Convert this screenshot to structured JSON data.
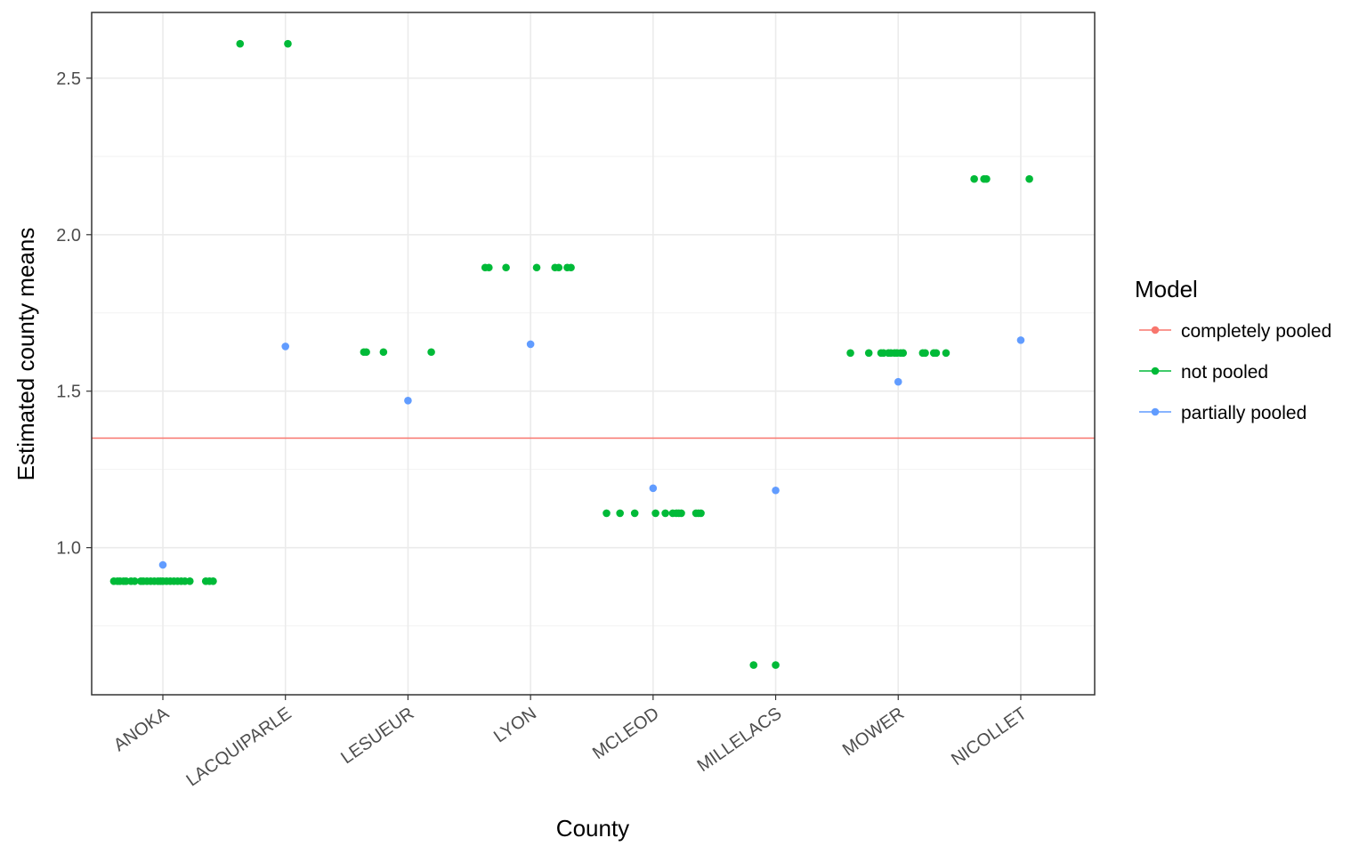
{
  "chart_data": {
    "type": "scatter",
    "title": "",
    "xlabel": "County",
    "ylabel": "Estimated county means",
    "categories": [
      "ANOKA",
      "LACQUIPARLE",
      "LESUEUR",
      "LYON",
      "MCLEOD",
      "MILLELACS",
      "MOWER",
      "NICOLLET"
    ],
    "ylim": [
      0.53,
      2.71
    ],
    "y_ticks": [
      1.0,
      1.5,
      2.0,
      2.5
    ],
    "y_tick_labels": [
      "1.0",
      "1.5",
      "2.0",
      "2.5"
    ],
    "grid": true,
    "legend": {
      "title": "Model",
      "placement": "right",
      "entries": [
        "completely pooled",
        "not pooled",
        "partially pooled"
      ]
    },
    "colors": {
      "completely pooled": "#F8766D",
      "not pooled": "#00BA38",
      "partially pooled": "#619CFF"
    },
    "series": [
      {
        "name": "completely pooled",
        "kind": "hline",
        "y": 1.35
      },
      {
        "name": "not pooled",
        "kind": "jitter",
        "groups": [
          {
            "category": "ANOKA",
            "y": 0.893,
            "offsets": [
              -0.4,
              -0.37,
              -0.35,
              -0.32,
              -0.3,
              -0.26,
              -0.23,
              -0.18,
              -0.16,
              -0.13,
              -0.1,
              -0.07,
              -0.04,
              -0.02,
              0.0,
              0.03,
              0.06,
              0.09,
              0.12,
              0.15,
              0.18,
              0.22,
              0.35,
              0.38,
              0.41
            ]
          },
          {
            "category": "LACQUIPARLE",
            "y": 2.61,
            "offsets": [
              -0.37,
              0.02
            ]
          },
          {
            "category": "LESUEUR",
            "y": 1.625,
            "offsets": [
              -0.36,
              -0.34,
              -0.2,
              0.19
            ]
          },
          {
            "category": "LYON",
            "y": 1.895,
            "offsets": [
              -0.37,
              -0.34,
              -0.2,
              0.05,
              0.2,
              0.23,
              0.3,
              0.33
            ]
          },
          {
            "category": "MCLEOD",
            "y": 1.11,
            "offsets": [
              -0.38,
              -0.27,
              -0.15,
              0.02,
              0.1,
              0.16,
              0.19,
              0.21,
              0.23,
              0.35,
              0.37,
              0.39
            ]
          },
          {
            "category": "MILLELACS",
            "y": 0.625,
            "offsets": [
              -0.18,
              0.0
            ]
          },
          {
            "category": "MOWER",
            "y": 1.622,
            "offsets": [
              -0.39,
              -0.24,
              -0.14,
              -0.12,
              -0.08,
              -0.06,
              -0.03,
              -0.01,
              0.02,
              0.04,
              0.2,
              0.22,
              0.29,
              0.31,
              0.39
            ]
          },
          {
            "category": "NICOLLET",
            "y": 2.178,
            "offsets": [
              -0.38,
              -0.3,
              -0.28,
              0.07
            ]
          }
        ]
      },
      {
        "name": "partially pooled",
        "kind": "points",
        "points": [
          {
            "category": "ANOKA",
            "y": 0.945
          },
          {
            "category": "LACQUIPARLE",
            "y": 1.643
          },
          {
            "category": "LESUEUR",
            "y": 1.47
          },
          {
            "category": "LYON",
            "y": 1.65
          },
          {
            "category": "MCLEOD",
            "y": 1.19
          },
          {
            "category": "MILLELACS",
            "y": 1.183
          },
          {
            "category": "MOWER",
            "y": 1.53
          },
          {
            "category": "NICOLLET",
            "y": 1.663
          }
        ]
      }
    ]
  }
}
